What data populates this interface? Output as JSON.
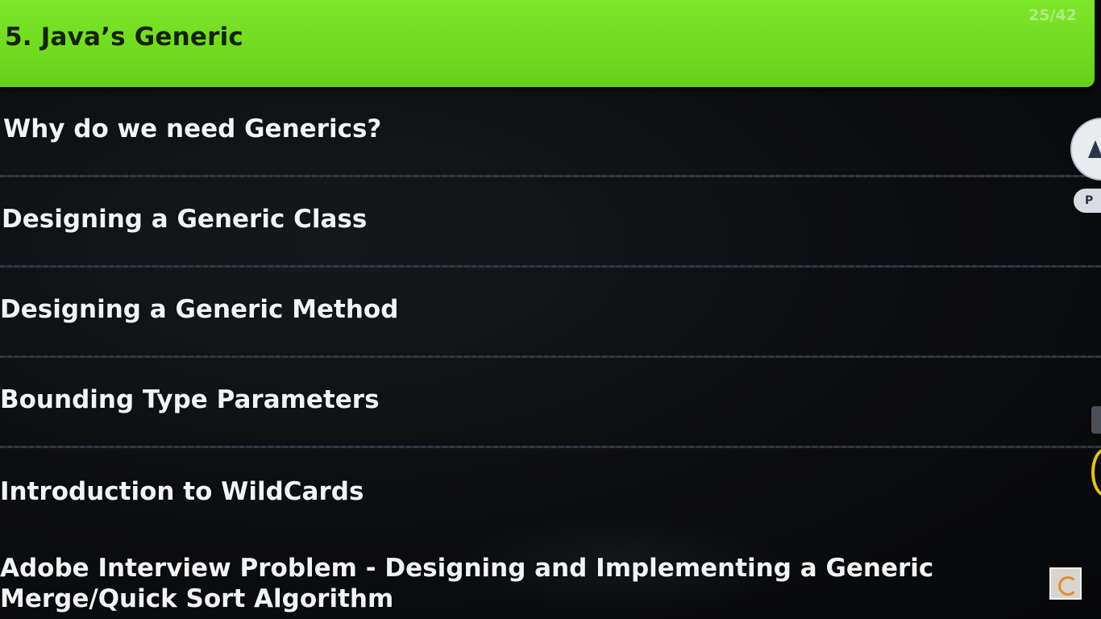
{
  "slide": {
    "title": "5. Java’s Generic",
    "page_counter": "25/42",
    "accent_color": "#72dd22"
  },
  "topics": [
    {
      "label": "Why do we need Generics?"
    },
    {
      "label": "Designing a Generic Class"
    },
    {
      "label": "Designing a Generic Method"
    },
    {
      "label": "Bounding Type Parameters"
    },
    {
      "label": "Introduction to WildCards"
    },
    {
      "label": "Adobe Interview Problem - Designing and Implementing a Generic Merge/Quick Sort Algorithm"
    }
  ],
  "side_controls": {
    "pill_text": "P",
    "icons": [
      "pen-tool-icon",
      "panel-tab-icon",
      "recording-ring-icon",
      "app-logo-icon"
    ]
  }
}
